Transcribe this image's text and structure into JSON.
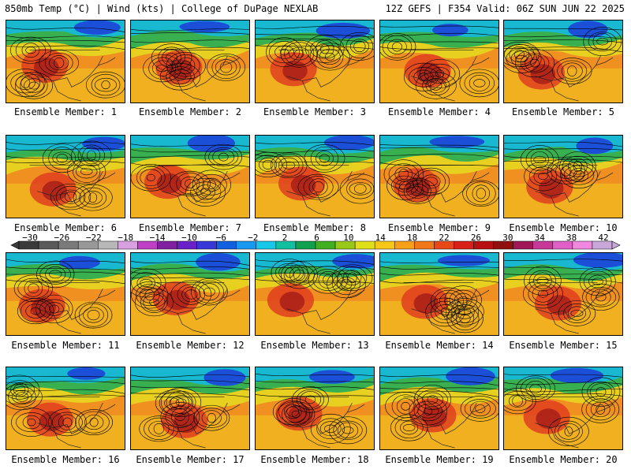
{
  "header": {
    "left": "850mb Temp (°C) | Wind (kts) | College of DuPage NEXLAB",
    "right": "12Z GEFS | F354 Valid: 06Z SUN JUN 22 2025"
  },
  "members": [
    {
      "label": "Ensemble Member: 1"
    },
    {
      "label": "Ensemble Member: 2"
    },
    {
      "label": "Ensemble Member: 3"
    },
    {
      "label": "Ensemble Member: 4"
    },
    {
      "label": "Ensemble Member: 5"
    },
    {
      "label": "Ensemble Member: 6"
    },
    {
      "label": "Ensemble Member: 7"
    },
    {
      "label": "Ensemble Member: 8"
    },
    {
      "label": "Ensemble Member: 9"
    },
    {
      "label": "Ensemble Member: 10"
    },
    {
      "label": "Ensemble Member: 11"
    },
    {
      "label": "Ensemble Member: 12"
    },
    {
      "label": "Ensemble Member: 13"
    },
    {
      "label": "Ensemble Member: 14"
    },
    {
      "label": "Ensemble Member: 15"
    },
    {
      "label": "Ensemble Member: 16"
    },
    {
      "label": "Ensemble Member: 17"
    },
    {
      "label": "Ensemble Member: 18"
    },
    {
      "label": "Ensemble Member: 19"
    },
    {
      "label": "Ensemble Member: 20"
    }
  ],
  "colorbar": {
    "ticks": [
      "-30",
      "-26",
      "-22",
      "-18",
      "-14",
      "-10",
      "-6",
      "-2",
      "2",
      "6",
      "10",
      "14",
      "18",
      "22",
      "26",
      "30",
      "34",
      "38",
      "42"
    ],
    "colors": [
      "#3a3a3a",
      "#5a5a5a",
      "#7a7a7a",
      "#999999",
      "#b8b8b8",
      "#d8a0e0",
      "#c040c8",
      "#8020a0",
      "#6a20c8",
      "#3838d8",
      "#1060e0",
      "#1898f0",
      "#18c8e8",
      "#10c0a0",
      "#10a050",
      "#40b020",
      "#98c818",
      "#e0e018",
      "#f8c818",
      "#f8a018",
      "#f07818",
      "#e84818",
      "#d82018",
      "#b81010",
      "#901010",
      "#a01858",
      "#c83898",
      "#e060c8",
      "#f088e0",
      "#c8a8d8"
    ]
  },
  "palette": {
    "cold": "#1c4fd8",
    "cool": "#18b8d0",
    "mild": "#38b050",
    "warm": "#e8d020",
    "hot": "#f09020",
    "veryhot": "#e04020",
    "extreme": "#a01818",
    "contour": "#000000",
    "border": "#222222"
  }
}
